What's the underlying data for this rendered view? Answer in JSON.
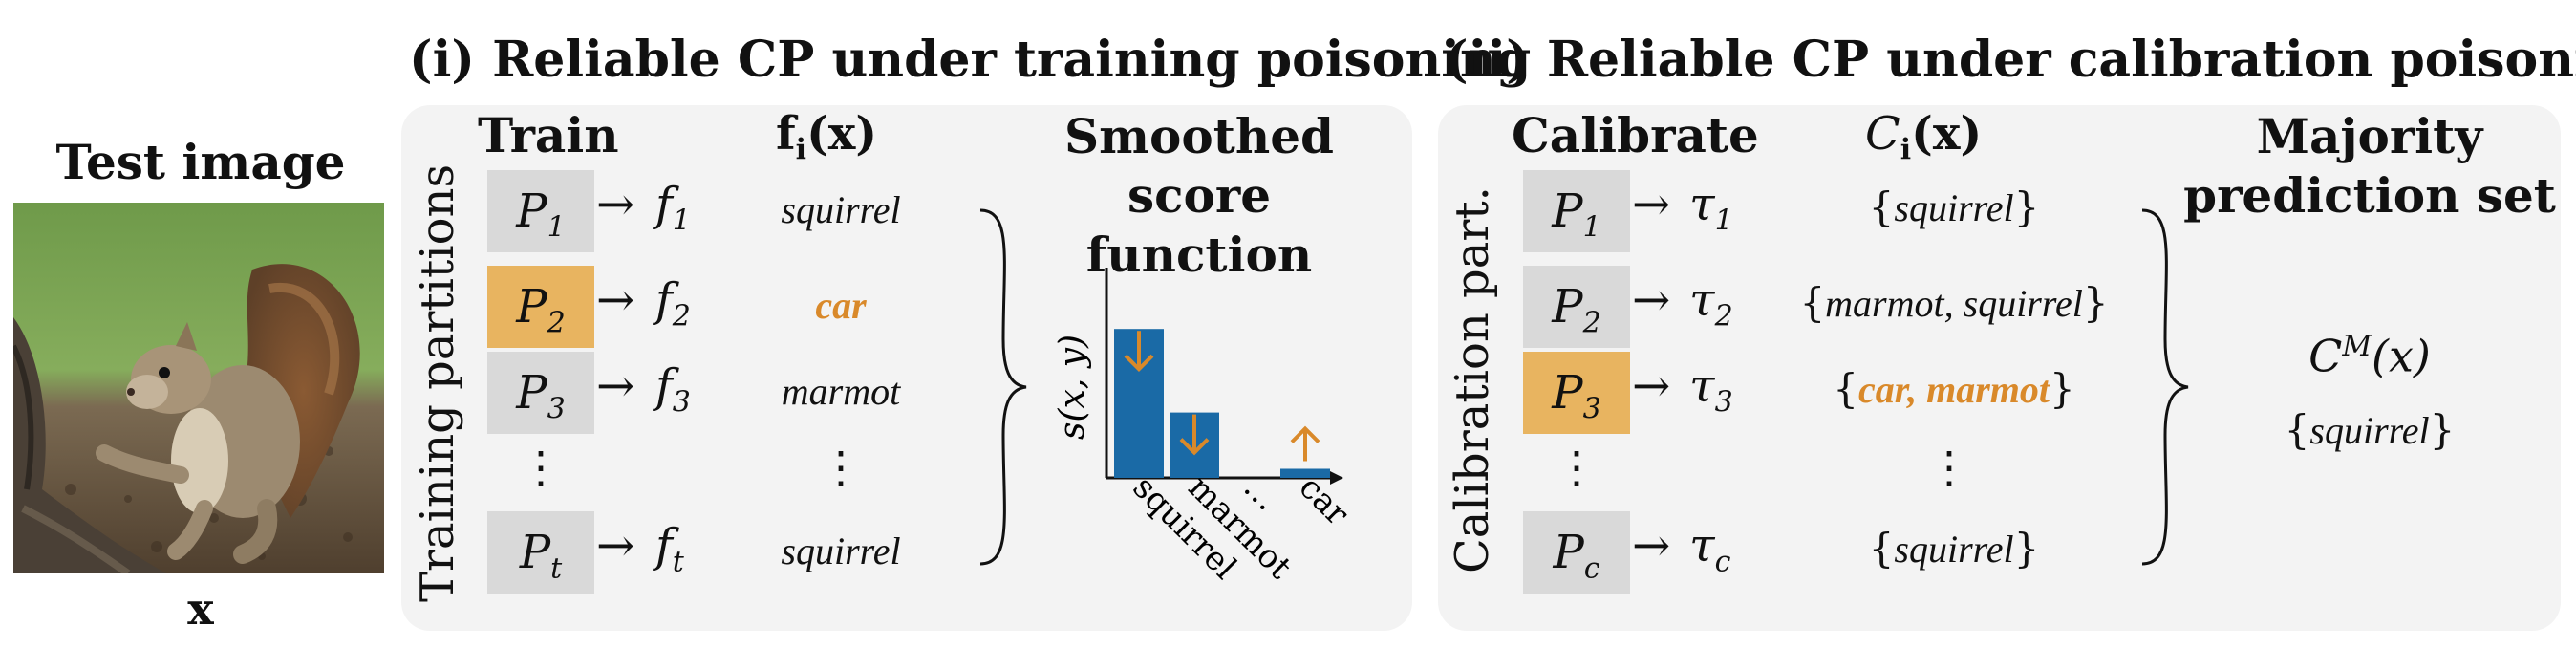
{
  "left": {
    "title": "Test image",
    "var": "x"
  },
  "panel1": {
    "title": "(i) Reliable CP under training poisoning",
    "side_label": "Training partitions",
    "col_train": "Train",
    "col_f": "f",
    "col_f_sub": "i",
    "col_f_arg": "(x)",
    "col_smooth_line1": "Smoothed score",
    "col_smooth_line2": "function",
    "rows": [
      {
        "p": "P",
        "psub": "1",
        "f": "f",
        "fsub": "1",
        "label": "squirrel",
        "highlight": false
      },
      {
        "p": "P",
        "psub": "2",
        "f": "f",
        "fsub": "2",
        "label": "car",
        "highlight": true
      },
      {
        "p": "P",
        "psub": "3",
        "f": "f",
        "fsub": "3",
        "label": "marmot",
        "highlight": false
      },
      {
        "p": "P",
        "psub": "t",
        "f": "f",
        "fsub": "t",
        "label": "squirrel",
        "highlight": false
      }
    ],
    "ellipsis": "⋮",
    "arrow": "→"
  },
  "chart_data": {
    "type": "bar",
    "categories": [
      "squirrel",
      "marmot",
      "…",
      "car"
    ],
    "values": [
      0.82,
      0.36,
      0,
      0.05
    ],
    "ylabel": "s(x, y)",
    "ylim": [
      0,
      1
    ],
    "arrows": [
      "down",
      "down",
      "none",
      "up"
    ],
    "bar_color": "#1a6aa6",
    "arrow_color": "#d9892a"
  },
  "panel2": {
    "title": "(ii) Reliable CP under calibration poisoning",
    "side_label": "Calibration part.",
    "col_cal": "Calibrate",
    "col_c": "C",
    "col_c_sub": "i",
    "col_c_arg": "(x)",
    "col_maj_line1": "Majority",
    "col_maj_line2": "prediction set",
    "rows": [
      {
        "p": "P",
        "psub": "1",
        "tau": "τ",
        "tsub": "1",
        "set_items": [
          "squirrel"
        ],
        "orange": [
          false
        ],
        "highlight": false
      },
      {
        "p": "P",
        "psub": "2",
        "tau": "τ",
        "tsub": "2",
        "set_items": [
          "marmot",
          "squirrel"
        ],
        "orange": [
          false,
          false
        ],
        "highlight": false
      },
      {
        "p": "P",
        "psub": "3",
        "tau": "τ",
        "tsub": "3",
        "set_items": [
          "car",
          "marmot"
        ],
        "orange": [
          true,
          true
        ],
        "highlight": true
      },
      {
        "p": "P",
        "psub": "c",
        "tau": "τ",
        "tsub": "c",
        "set_items": [
          "squirrel"
        ],
        "orange": [
          false
        ],
        "highlight": false
      }
    ],
    "majority_sym": "C",
    "majority_sup": "M",
    "majority_arg": "(x)",
    "majority_set": "squirrel"
  },
  "colors": {
    "panel_bg": "#f3f3f3",
    "cell_bg": "#d9d9d9",
    "highlight_bg": "#e8b460",
    "accent": "#d9892a"
  }
}
